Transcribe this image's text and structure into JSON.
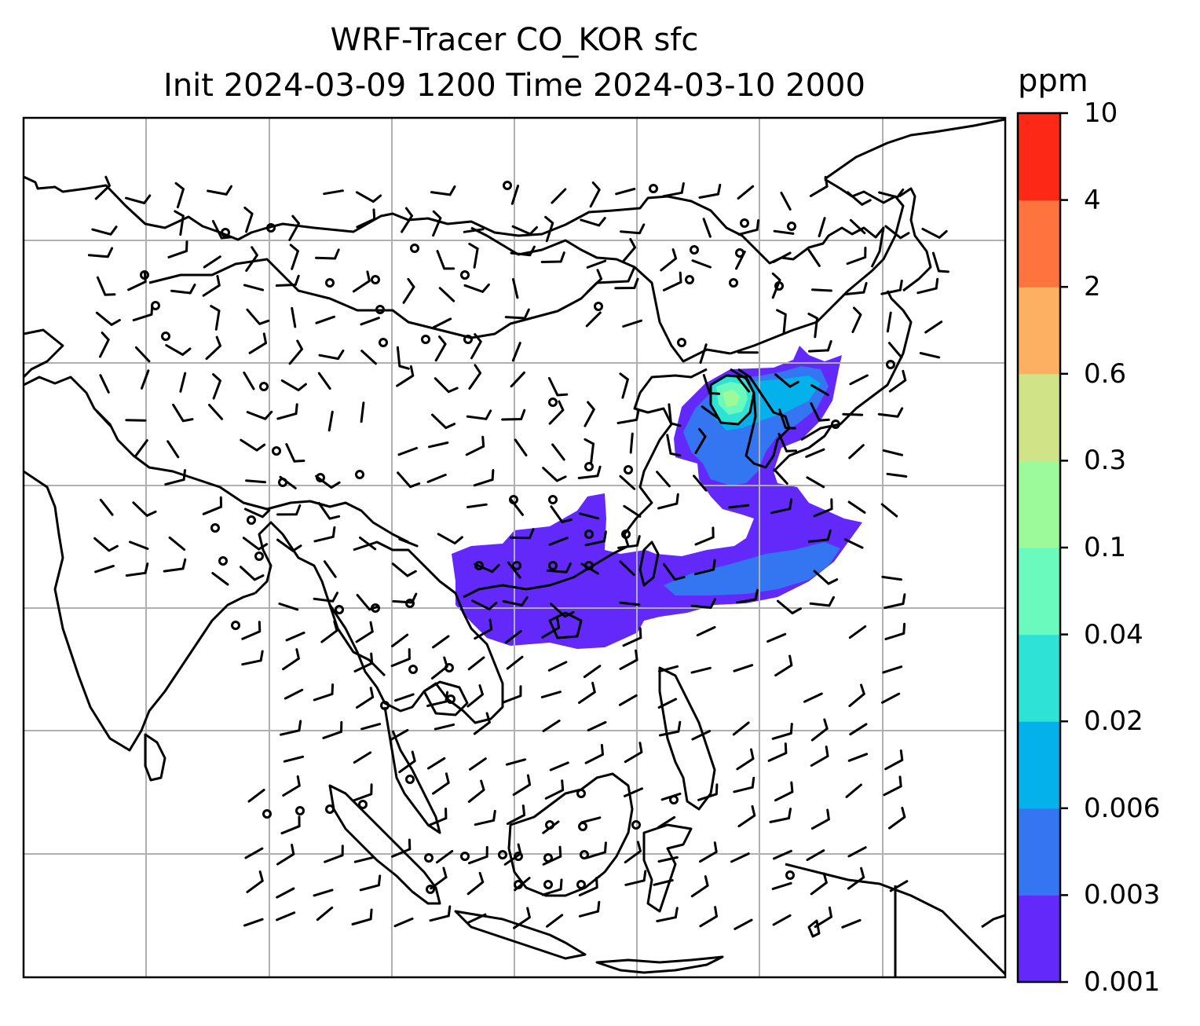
{
  "title_line1": "WRF-Tracer CO_KOR sfc",
  "title_line2": "Init 2024-03-09 1200 Time 2024-03-10 2000",
  "colorbar": {
    "unit": "ppm",
    "levels": [
      "0.001",
      "0.003",
      "0.006",
      "0.02",
      "0.04",
      "0.1",
      "0.3",
      "0.6",
      "2",
      "4",
      "10"
    ],
    "colors": [
      "#6229fa",
      "#3475f2",
      "#04b1ea",
      "#2ee2d6",
      "#6bfabe",
      "#9dfa9a",
      "#d0e386",
      "#feb061",
      "#ff733e",
      "#fe2817"
    ]
  },
  "colors": {
    "coastline": "#000000",
    "gridline": "#b0b0b0",
    "wind_barb": "#000000"
  }
}
